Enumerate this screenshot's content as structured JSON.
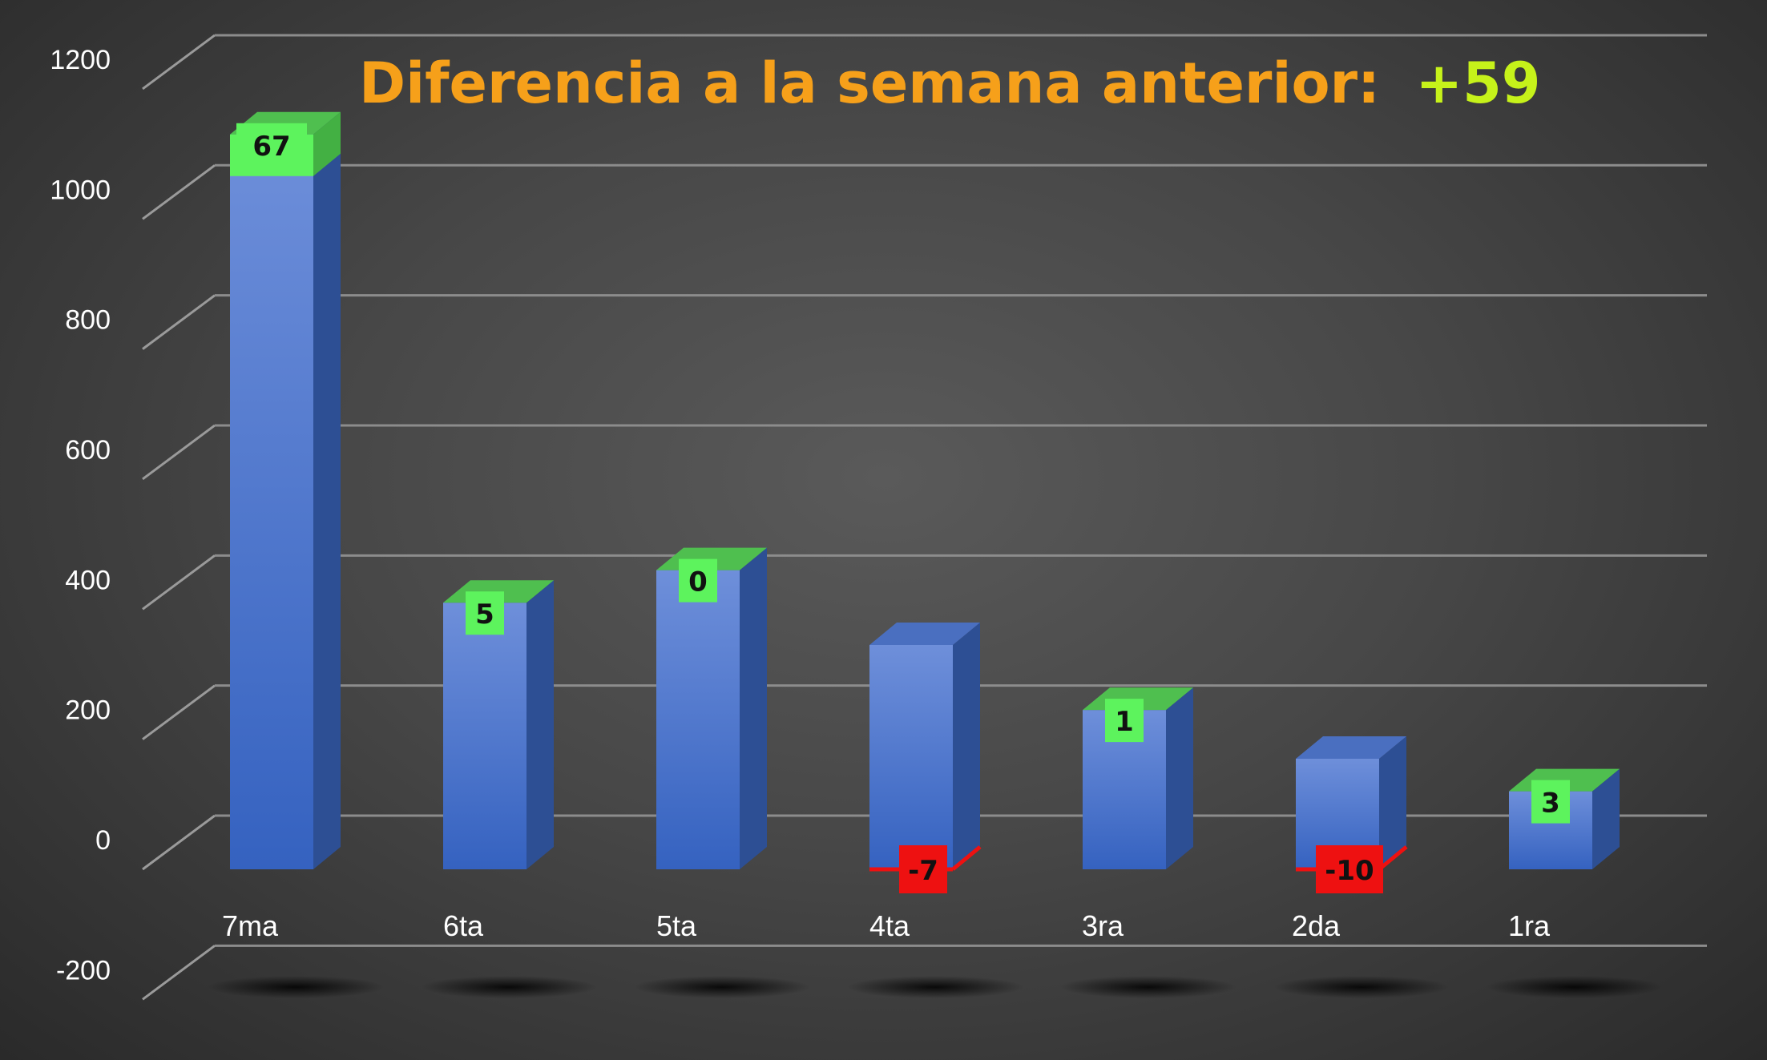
{
  "chart_data": {
    "type": "bar",
    "title": "Diferencia a la semana anterior:",
    "title_value": "+59",
    "categories": [
      "7ma",
      "6ta",
      "5ta",
      "4ta",
      "3ra",
      "2da",
      "1ra"
    ],
    "values": [
      1130,
      410,
      460,
      345,
      245,
      170,
      120
    ],
    "differences": [
      67,
      5,
      0,
      -7,
      1,
      -10,
      3
    ],
    "yticks": [
      -200,
      0,
      200,
      400,
      600,
      800,
      1000,
      1200
    ],
    "ylim": [
      -200,
      1200
    ],
    "xlabel": "",
    "ylabel": "",
    "grid": true,
    "legend": "none",
    "style": "3d-column",
    "colors": {
      "bar": "#4472c4",
      "positive_cap": "#5df35d",
      "negative_cap": "#ee1111",
      "title": "#f6a01a",
      "title_value": "#c6f21a"
    }
  }
}
